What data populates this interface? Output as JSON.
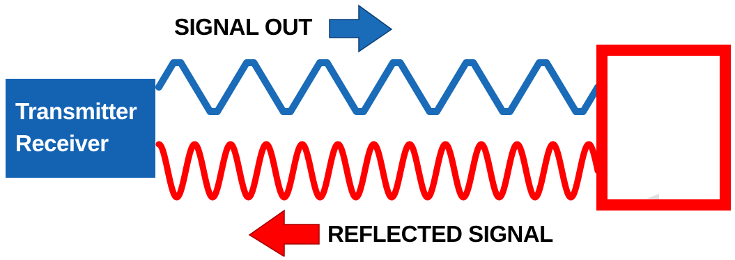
{
  "labels": {
    "signal_out": "SIGNAL OUT",
    "reflected_signal": "REFLECTED SIGNAL",
    "transmitter_line1": "Transmitter",
    "transmitter_line2": "Receiver"
  },
  "colors": {
    "outgoing": "#1a6bb8",
    "reflected": "#ff0000",
    "transmitter_box": "#1463b3",
    "target_border": "#ff0000"
  },
  "icons": {
    "outgoing_arrow": "arrow-right-icon",
    "reflected_arrow": "arrow-left-icon"
  },
  "waves": {
    "outgoing_cycles": 6,
    "reflected_cycles": 12
  }
}
